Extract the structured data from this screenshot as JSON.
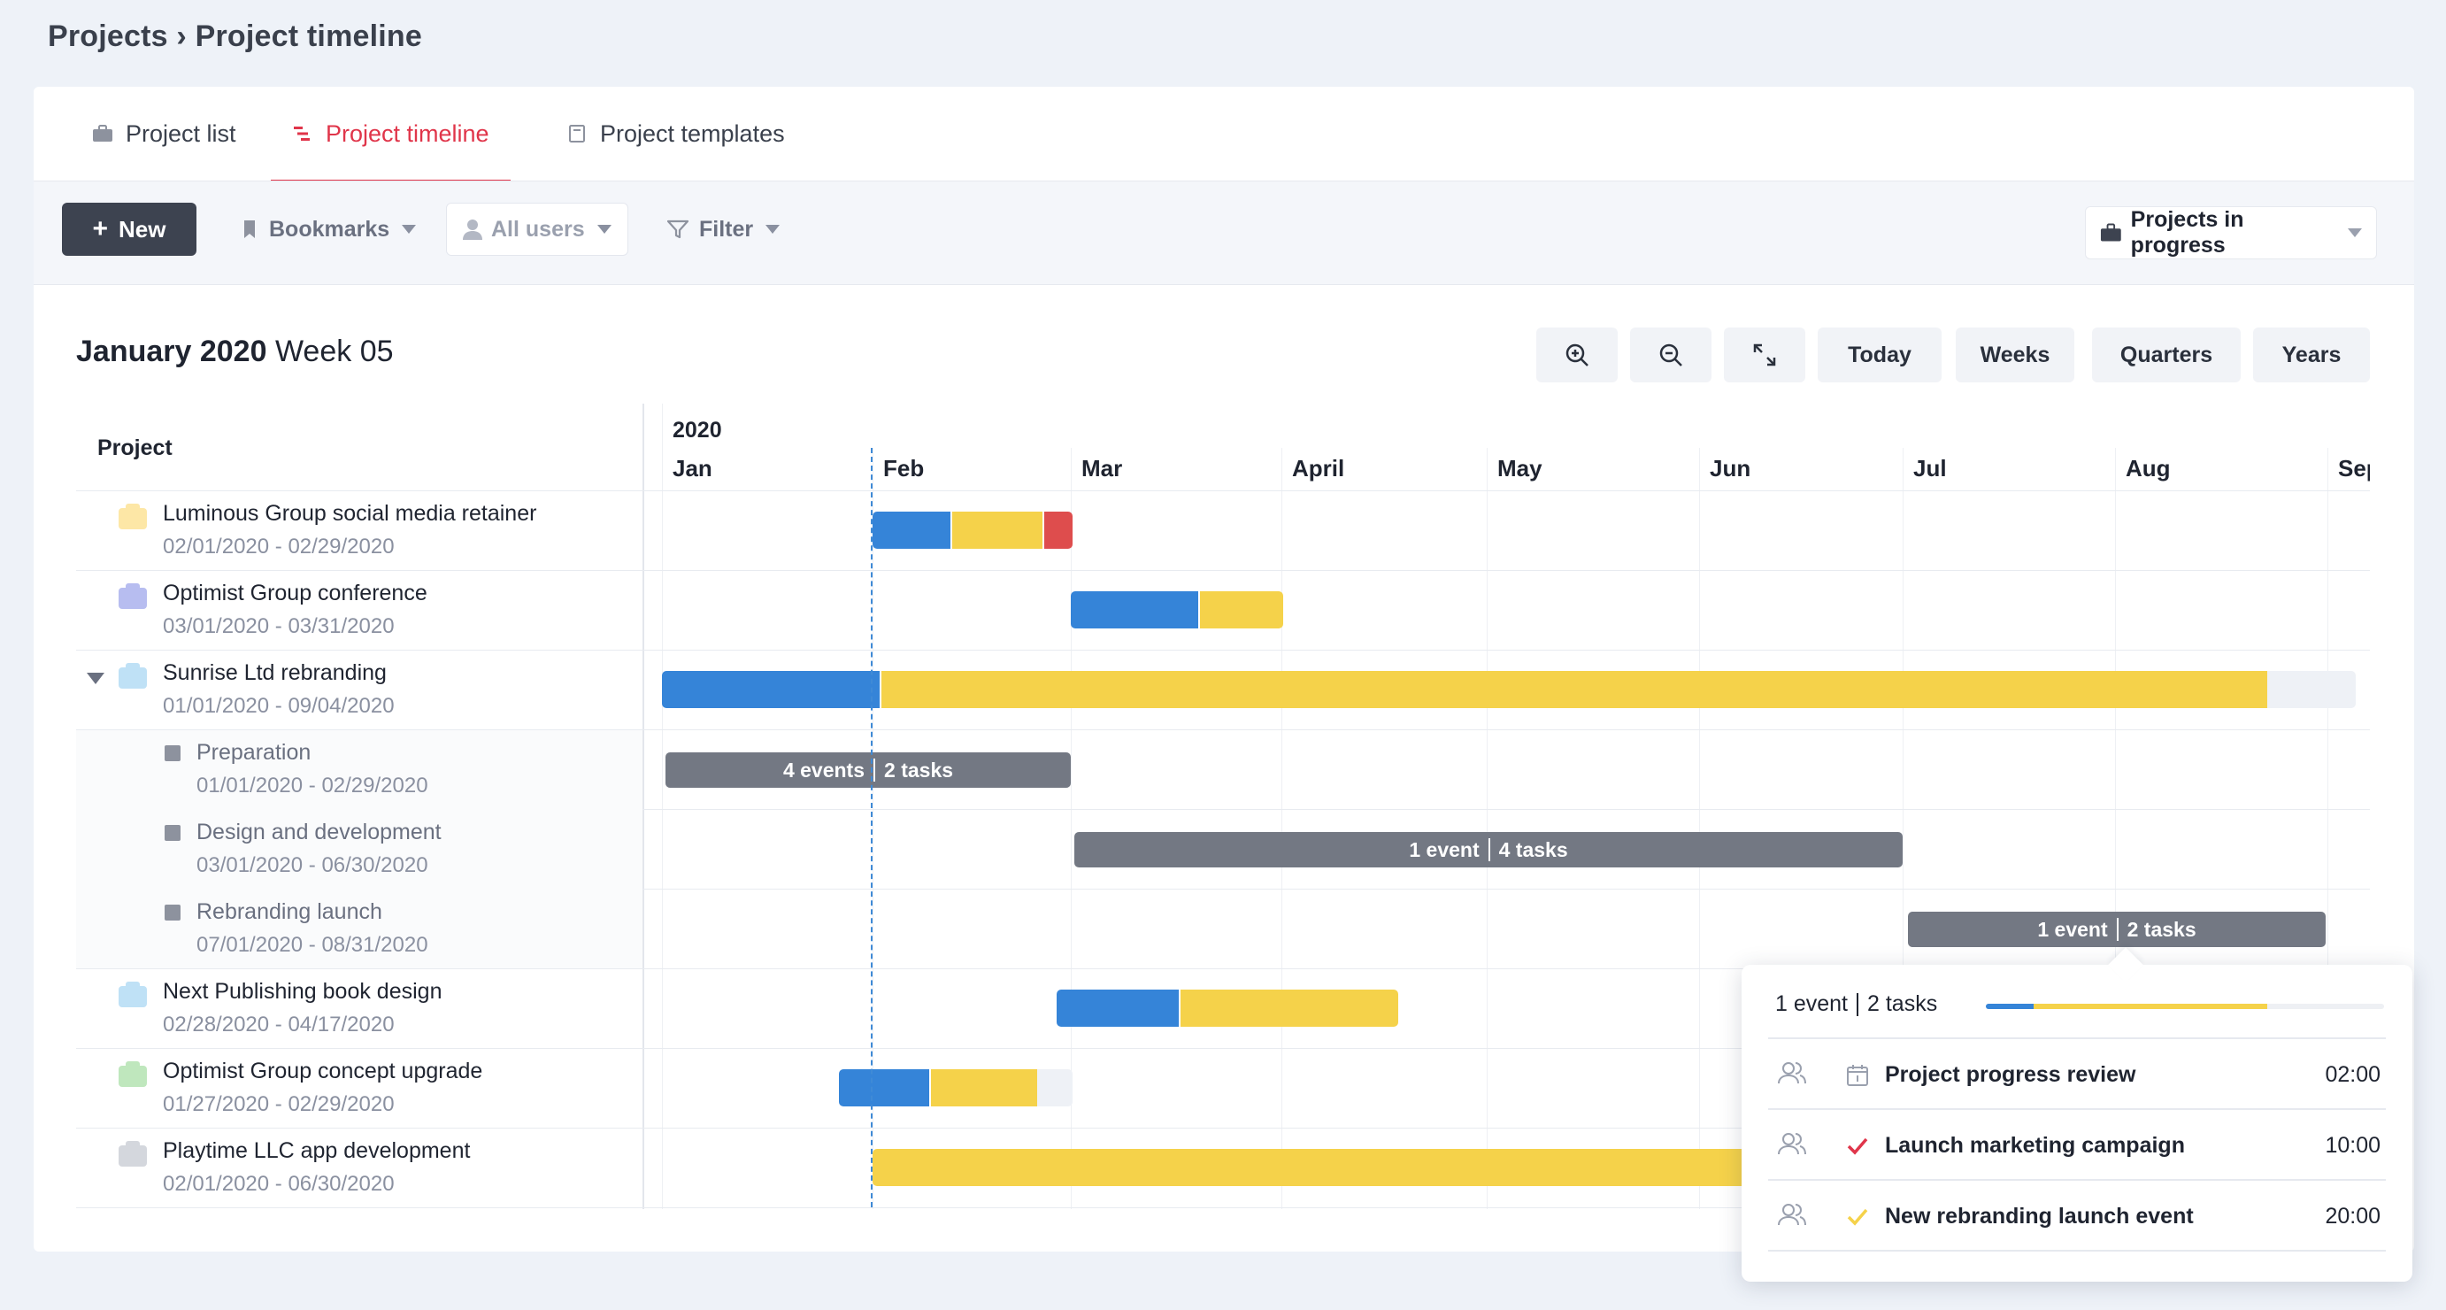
{
  "breadcrumb": "Projects › Project timeline",
  "tabs": [
    {
      "label": "Project list",
      "icon": "briefcase-icon"
    },
    {
      "label": "Project timeline",
      "icon": "timeline-icon",
      "active": true
    },
    {
      "label": "Project templates",
      "icon": "template-icon"
    }
  ],
  "toolbar": {
    "new_label": "New",
    "bookmarks_label": "Bookmarks",
    "all_users_label": "All users",
    "filter_label": "Filter",
    "status_label": "Projects in progress"
  },
  "period": {
    "month_year": "January 2020",
    "week": "Week 05"
  },
  "controls": {
    "zoom_in": "zoom-in-icon",
    "zoom_out": "zoom-out-icon",
    "expand": "expand-icon",
    "today": "Today",
    "weeks": "Weeks",
    "quarters": "Quarters",
    "years": "Years"
  },
  "timeline": {
    "project_header": "Project",
    "year": "2020",
    "months": [
      "Jan",
      "Feb",
      "Mar",
      "April",
      "May",
      "Jun",
      "Jul",
      "Aug",
      "Sep"
    ]
  },
  "colors": {
    "blue": "#3584d8",
    "yellow": "#f5d24a",
    "red": "#de4d4d",
    "gray_bar": "#737883",
    "accent": "#e0354a"
  },
  "projects": [
    {
      "name": "Luminous Group social media retainer",
      "dates": "02/01/2020 - 02/29/2020",
      "folder_color": "#fde7a6"
    },
    {
      "name": "Optimist Group conference",
      "dates": "03/01/2020 - 03/31/2020",
      "folder_color": "#b7bdf0"
    },
    {
      "name": "Sunrise Ltd rebranding",
      "dates": "01/01/2020 - 09/04/2020",
      "folder_color": "#bfe1f6"
    },
    {
      "name": "Preparation",
      "dates": "01/01/2020 - 02/29/2020"
    },
    {
      "name": "Design and development",
      "dates": "03/01/2020 - 06/30/2020"
    },
    {
      "name": "Rebranding launch",
      "dates": "07/01/2020 - 08/31/2020"
    },
    {
      "name": "Next Publishing book design",
      "dates": "02/28/2020 - 04/17/2020",
      "folder_color": "#bfe1f6"
    },
    {
      "name": "Optimist Group concept upgrade",
      "dates": "01/27/2020 - 02/29/2020",
      "folder_color": "#bfe7bd"
    },
    {
      "name": "Playtime LLC app development",
      "dates": "02/01/2020 - 06/30/2020",
      "folder_color": "#d4d7dd"
    }
  ],
  "phase_bars": [
    {
      "events": "4 events",
      "tasks": "2 tasks"
    },
    {
      "events": "1 event",
      "tasks": "4 tasks"
    },
    {
      "events": "1 event",
      "tasks": "2 tasks"
    }
  ],
  "popup": {
    "events": "1 event",
    "tasks": "2 tasks",
    "items": [
      {
        "title": "Project progress review",
        "time": "02:00",
        "kind": "calendar-icon"
      },
      {
        "title": "Launch marketing campaign",
        "time": "10:00",
        "kind": "check-red-icon"
      },
      {
        "title": "New rebranding launch event",
        "time": "20:00",
        "kind": "check-yellow-icon"
      }
    ]
  }
}
